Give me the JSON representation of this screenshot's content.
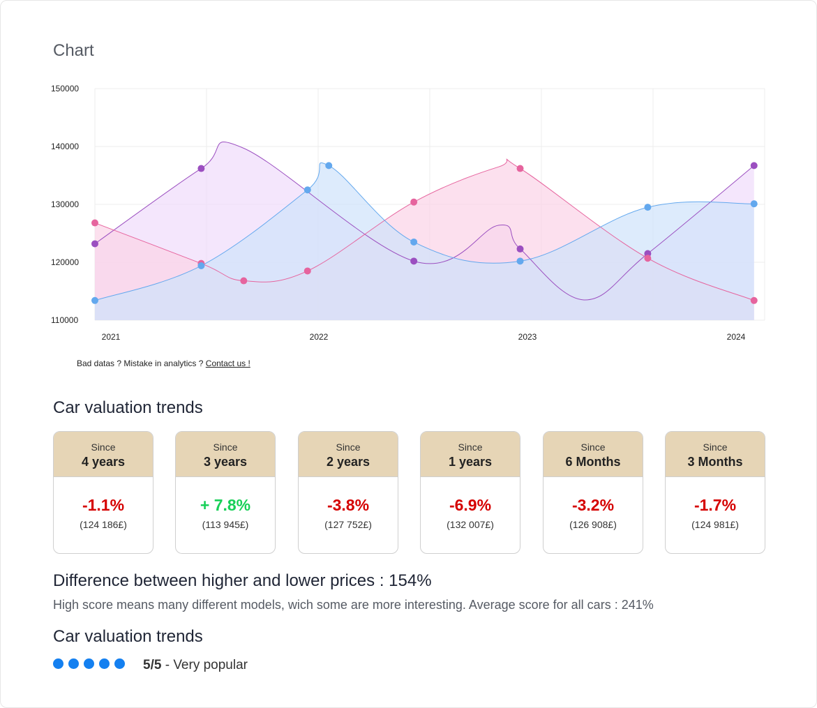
{
  "chart_section": {
    "title": "Chart",
    "footnote_text": "Bad datas ? Mistake in analytics ?",
    "footnote_link": "Contact us !"
  },
  "chart_data": {
    "type": "area",
    "title": "",
    "xlabel": "",
    "ylabel": "",
    "x_ticks": [
      "2021",
      "2022",
      "2023",
      "2024"
    ],
    "y_ticks": [
      150000,
      140000,
      130000,
      120000,
      110000
    ],
    "ylim": [
      110000,
      150000
    ],
    "xlim": [
      2021.0,
      2024.15
    ],
    "grid": true,
    "legend": "none",
    "series": [
      {
        "color": "#9b4fc0",
        "fill": "#f0dcfb",
        "points": [
          [
            2021.0,
            123200
          ],
          [
            2021.5,
            136200
          ],
          [
            2021.7,
            139700
          ],
          [
            2022.5,
            120200
          ],
          [
            2022.9,
            126400
          ],
          [
            2023.0,
            122300
          ],
          [
            2023.3,
            113500
          ],
          [
            2023.6,
            121500
          ],
          [
            2024.1,
            136700
          ]
        ]
      },
      {
        "color": "#e6649e",
        "fill": "#fbd3e7",
        "points": [
          [
            2021.0,
            126800
          ],
          [
            2021.5,
            119800
          ],
          [
            2021.7,
            116800
          ],
          [
            2022.0,
            118500
          ],
          [
            2022.5,
            130400
          ],
          [
            2022.9,
            136500
          ],
          [
            2023.0,
            136200
          ],
          [
            2023.6,
            120700
          ],
          [
            2024.1,
            113400
          ]
        ]
      },
      {
        "color": "#63a8ee",
        "fill": "#cfe3fb",
        "points": [
          [
            2021.0,
            113400
          ],
          [
            2021.5,
            119400
          ],
          [
            2022.0,
            132500
          ],
          [
            2022.1,
            136700
          ],
          [
            2022.5,
            123500
          ],
          [
            2023.0,
            120200
          ],
          [
            2023.6,
            129500
          ],
          [
            2024.1,
            130100
          ]
        ]
      }
    ],
    "markers": [
      {
        "series": 0,
        "at": [
          2021.0,
          2021.5,
          2022.5,
          2023.0,
          2023.6,
          2024.1
        ]
      },
      {
        "series": 1,
        "at": [
          2021.0,
          2021.5,
          2021.7,
          2022.0,
          2022.5,
          2023.0,
          2023.6,
          2024.1
        ]
      },
      {
        "series": 2,
        "at": [
          2021.0,
          2021.5,
          2022.0,
          2022.1,
          2022.5,
          2023.0,
          2023.6,
          2024.1
        ]
      }
    ]
  },
  "trends": {
    "title": "Car valuation trends",
    "cards": [
      {
        "since": "Since",
        "period": "4 years",
        "change": "-1.1%",
        "trend": "negative",
        "price": "(124 186£)"
      },
      {
        "since": "Since",
        "period": "3 years",
        "change": "+ 7.8%",
        "trend": "positive",
        "price": "(113 945£)"
      },
      {
        "since": "Since",
        "period": "2 years",
        "change": "-3.8%",
        "trend": "negative",
        "price": "(127 752£)"
      },
      {
        "since": "Since",
        "period": "1 years",
        "change": "-6.9%",
        "trend": "negative",
        "price": "(132 007£)"
      },
      {
        "since": "Since",
        "period": "6 Months",
        "change": "-3.2%",
        "trend": "negative",
        "price": "(126 908£)"
      },
      {
        "since": "Since",
        "period": "3 Months",
        "change": "-1.7%",
        "trend": "negative",
        "price": "(124 981£)"
      }
    ],
    "colors": {
      "header_bg": "#e6d5b6",
      "negative": "#d50000",
      "positive": "#18d058"
    }
  },
  "difference": {
    "title": "Difference between higher and lower prices : 154%",
    "description": "High score means many different models, wich some are more interesting. Average score for all cars : 241%"
  },
  "popularity": {
    "title": "Car valuation trends",
    "score": "5/5",
    "separator": " - ",
    "label": "Very popular",
    "filled": 5,
    "total": 5,
    "dot_color": "#1480f0"
  }
}
